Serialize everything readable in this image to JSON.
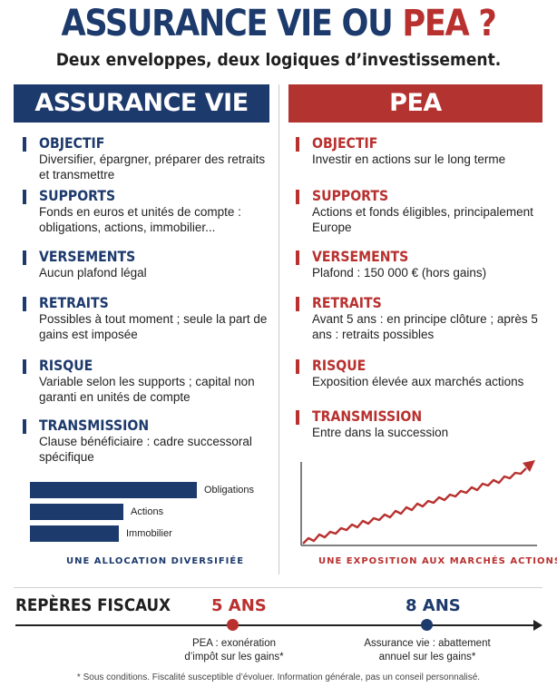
{
  "title": {
    "part1": "ASSURANCE VIE OU ",
    "part2": "PEA ?"
  },
  "subtitle": "Deux enveloppes, deux logiques d’investissement.",
  "left": {
    "header": "ASSURANCE VIE",
    "sections": [
      {
        "title": "OBJECTIF",
        "body": "Diversifier, épargner, préparer des retraits et transmettre"
      },
      {
        "title": "SUPPORTS",
        "body": "Fonds en euros et unités de compte : obligations, actions, immobilier..."
      },
      {
        "title": "VERSEMENTS",
        "body": "Aucun plafond légal"
      },
      {
        "title": "RETRAITS",
        "body": "Possibles à tout moment ; seule la part de gains est imposée"
      },
      {
        "title": "RISQUE",
        "body": "Variable selon les supports ; capital non garanti en unités de compte"
      },
      {
        "title": "TRANSMISSION",
        "body": "Clause bénéficiaire : cadre successoral spécifique"
      }
    ],
    "allocation": [
      {
        "label": "Obligations",
        "share": 1.0
      },
      {
        "label": "Actions",
        "share": 0.56
      },
      {
        "label": "Immobilier",
        "share": 0.53
      }
    ],
    "caption": "UNE ALLOCATION DIVERSIFIÉE"
  },
  "right": {
    "header": "PEA",
    "sections": [
      {
        "title": "OBJECTIF",
        "body": "Investir en actions sur le long terme"
      },
      {
        "title": "SUPPORTS",
        "body": "Actions et fonds éligibles, principalement Europe"
      },
      {
        "title": "VERSEMENTS",
        "body": "Plafond : 150 000 € (hors gains)"
      },
      {
        "title": "RETRAITS",
        "body": "Avant 5 ans : en principe clôture ; après 5 ans : retraits possibles"
      },
      {
        "title": "RISQUE",
        "body": "Exposition élevée aux marchés actions"
      },
      {
        "title": "TRANSMISSION",
        "body": "Entre dans la succession"
      }
    ],
    "caption": "UNE EXPOSITION AUX MARCHÉS ACTIONS"
  },
  "fiscal": {
    "title": "REPÈRES FISCAUX",
    "milestones": [
      {
        "year": "5 ANS",
        "note1": "PEA : exonération",
        "note2": "d’impôt sur les gains*",
        "color": "#b8312f"
      },
      {
        "year": "8 ANS",
        "note1": "Assurance vie : abattement",
        "note2": "annuel sur les gains*",
        "color": "#1d3a6c"
      }
    ]
  },
  "footnote": "* Sous conditions. Fiscalité susceptible d’évoluer. Information générale, pas un conseil personnalisé.",
  "colors": {
    "navy": "#1d3a6c",
    "red": "#b8312f"
  }
}
